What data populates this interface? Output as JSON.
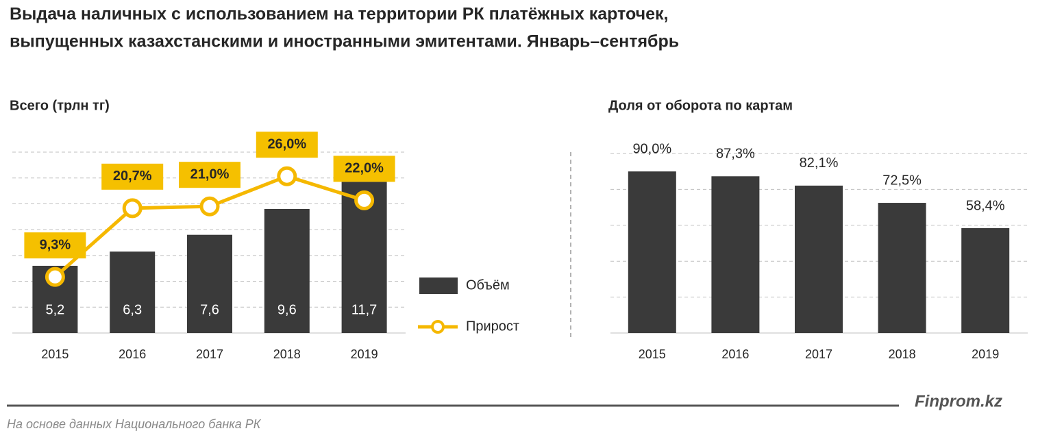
{
  "header": {
    "title": [
      "Выдача наличных с использованием на территории РК платёжных карточек,",
      "выпущенных казахстанскими и иностранными эмитентами. Январь–сентябрь"
    ]
  },
  "chart_data": [
    {
      "type": "bar",
      "title": "Всего (трлн тг)",
      "categories": [
        "2015",
        "2016",
        "2017",
        "2018",
        "2019"
      ],
      "series": [
        {
          "name": "Объём",
          "type": "bar",
          "color": "#3a3a3a",
          "values": [
            5.2,
            6.3,
            7.6,
            9.6,
            11.7
          ],
          "value_labels": [
            "5,2",
            "6,3",
            "7,6",
            "9,6",
            "11,7"
          ]
        },
        {
          "name": "Прирост",
          "type": "line",
          "axis": "y2",
          "color": "#f5b800",
          "values": [
            9.3,
            20.7,
            21.0,
            26.0,
            22.0
          ],
          "value_labels": [
            "9,3%",
            "20,7%",
            "21,0%",
            "26,0%",
            "22,0%"
          ]
        }
      ],
      "ylim": [
        0,
        14
      ],
      "y2lim": [
        0,
        30
      ],
      "grid": true,
      "legend": "right"
    },
    {
      "type": "bar",
      "title": "Доля от оборота  по картам",
      "categories": [
        "2015",
        "2016",
        "2017",
        "2018",
        "2019"
      ],
      "values": [
        90.0,
        87.3,
        82.1,
        72.5,
        58.4
      ],
      "value_labels": [
        "90,0%",
        "87,3%",
        "82,1%",
        "72,5%",
        "58,4%"
      ],
      "color": "#3a3a3a",
      "ylim": [
        0,
        100
      ],
      "grid": true
    }
  ],
  "footer": {
    "brand": "Finprom.kz",
    "source": "На основе данных Национального  банка РК"
  }
}
